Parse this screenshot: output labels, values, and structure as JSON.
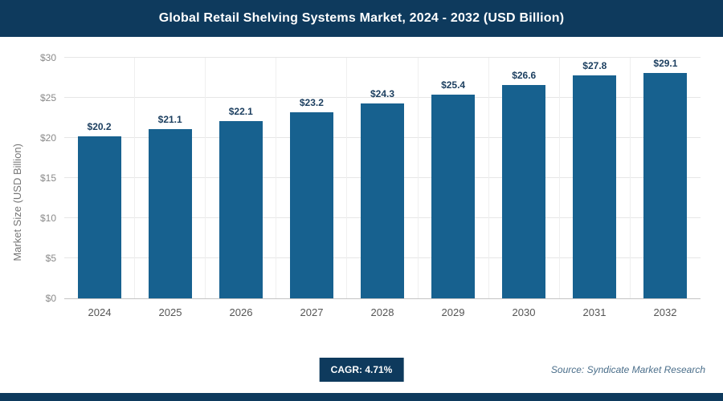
{
  "header": {
    "title": "Global Retail Shelving Systems Market, 2024 - 2032 (USD Billion)"
  },
  "chart_data": {
    "type": "bar",
    "title": "Global Retail Shelving Systems Market, 2024 - 2032 (USD Billion)",
    "categories": [
      "2024",
      "2025",
      "2026",
      "2027",
      "2028",
      "2029",
      "2030",
      "2031",
      "2032"
    ],
    "values": [
      20.2,
      21.1,
      22.1,
      23.2,
      24.3,
      25.4,
      26.6,
      27.8,
      29.1
    ],
    "value_labels": [
      "$20.2",
      "$21.1",
      "$22.1",
      "$23.2",
      "$24.3",
      "$25.4",
      "$26.6",
      "$27.8",
      "$29.1"
    ],
    "xlabel": "",
    "ylabel": "Market Size (USD Billion)",
    "ylim": [
      0,
      30
    ],
    "ytick_values": [
      0,
      5,
      10,
      15,
      20,
      25,
      30
    ],
    "ytick_labels": [
      "$0",
      "$5",
      "$10",
      "$15",
      "$20",
      "$25",
      "$30"
    ],
    "grid": true,
    "legend": false,
    "bar_color": "#17618f"
  },
  "footer": {
    "cagr_label": "CAGR: 4.71%",
    "source": "Source: Syndicate Market Research"
  },
  "colors": {
    "header_bg": "#0e3a5d",
    "bar": "#17618f",
    "badge_bg": "#0e3a5d",
    "strip": "#0e3a5d",
    "gridline": "#e6e6e6"
  }
}
